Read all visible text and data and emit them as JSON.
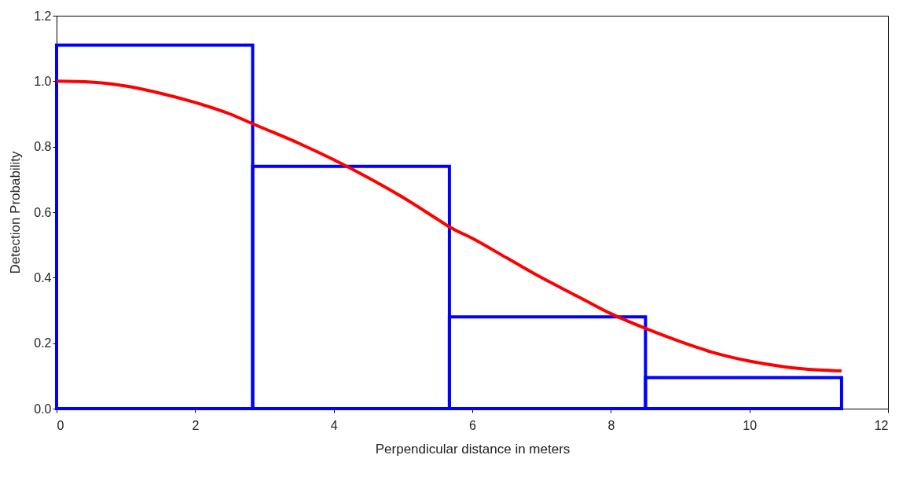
{
  "chart_data": {
    "type": "histogram",
    "xlabel": "Perpendicular distance in meters",
    "ylabel": "Detection Probability",
    "xlim": [
      0,
      12
    ],
    "xticks": [
      0,
      2,
      4,
      6,
      8,
      10,
      12
    ],
    "ylim": [
      0,
      1.2
    ],
    "yticks": [
      {
        "value": 0,
        "label": "0.0"
      },
      0.2,
      0.4,
      0.6,
      0.8,
      {
        "value": 1,
        "label": "1.0"
      },
      1.2
    ],
    "grid": false,
    "series": [
      {
        "color": "#0000ff",
        "bins": [
          0,
          2.83,
          5.67,
          8.5,
          11.33
        ],
        "values": [
          1.11,
          0.74,
          0.28,
          0.095
        ]
      },
      {
        "type": "line",
        "color": "#ff0000",
        "x": [
          0,
          0.5,
          1,
          1.5,
          2,
          2.5,
          2.83,
          3,
          3.5,
          4,
          4.5,
          5,
          5.5,
          5.67,
          6,
          6.5,
          7,
          7.5,
          8,
          8.5,
          9,
          9.5,
          10,
          10.5,
          11,
          11.33
        ],
        "values": [
          1.0,
          0.997,
          0.985,
          0.963,
          0.935,
          0.9,
          0.87,
          0.855,
          0.81,
          0.76,
          0.705,
          0.645,
          0.578,
          0.555,
          0.52,
          0.46,
          0.4,
          0.345,
          0.29,
          0.245,
          0.205,
          0.17,
          0.145,
          0.128,
          0.118,
          0.115
        ]
      }
    ]
  }
}
